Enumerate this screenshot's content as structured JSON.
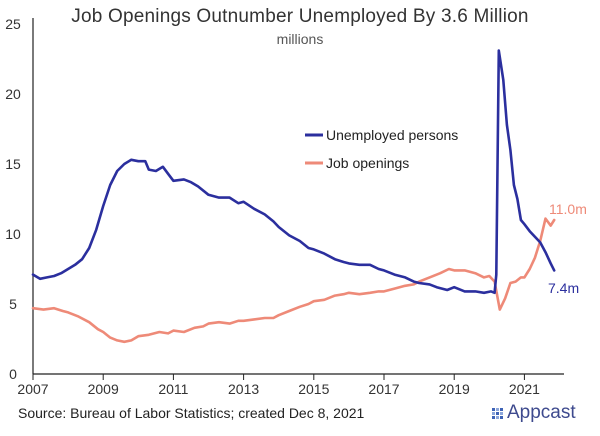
{
  "header": {
    "title": "Job Openings Outnumber Unemployed By 3.6 Million",
    "subtitle": "millions"
  },
  "footer": {
    "source": "Source: Bureau of Labor Statistics; created Dec 8, 2021",
    "brand": "Appcast",
    "brand_icon": "appcast-logo-icon"
  },
  "chart_data": {
    "type": "line",
    "title": "Job Openings Outnumber Unemployed By 3.6 Million",
    "subtitle": "millions",
    "xlabel": "",
    "ylabel": "",
    "xlim": [
      2007,
      2021.9
    ],
    "ylim": [
      0,
      25
    ],
    "x_ticks": [
      "2007",
      "2009",
      "2011",
      "2013",
      "2015",
      "2017",
      "2019",
      "2021"
    ],
    "y_ticks": [
      "0",
      "5",
      "10",
      "15",
      "20",
      "25"
    ],
    "grid": false,
    "legend_position": "center-right",
    "annotations": [
      {
        "text": "7.4m",
        "series": "Unemployed persons"
      },
      {
        "text": "11.0m",
        "series": "Job openings"
      }
    ],
    "series": [
      {
        "name": "Unemployed persons",
        "color": "#2b2f9e",
        "points": [
          [
            2007.0,
            7.1
          ],
          [
            2007.2,
            6.8
          ],
          [
            2007.4,
            6.9
          ],
          [
            2007.6,
            7.0
          ],
          [
            2007.8,
            7.2
          ],
          [
            2008.0,
            7.5
          ],
          [
            2008.2,
            7.8
          ],
          [
            2008.4,
            8.2
          ],
          [
            2008.6,
            9.0
          ],
          [
            2008.8,
            10.3
          ],
          [
            2009.0,
            12.0
          ],
          [
            2009.2,
            13.5
          ],
          [
            2009.4,
            14.5
          ],
          [
            2009.6,
            15.0
          ],
          [
            2009.8,
            15.3
          ],
          [
            2010.0,
            15.2
          ],
          [
            2010.2,
            15.2
          ],
          [
            2010.3,
            14.6
          ],
          [
            2010.5,
            14.5
          ],
          [
            2010.7,
            14.8
          ],
          [
            2010.85,
            14.3
          ],
          [
            2011.0,
            13.8
          ],
          [
            2011.3,
            13.9
          ],
          [
            2011.5,
            13.7
          ],
          [
            2011.7,
            13.4
          ],
          [
            2012.0,
            12.8
          ],
          [
            2012.3,
            12.6
          ],
          [
            2012.6,
            12.6
          ],
          [
            2012.85,
            12.2
          ],
          [
            2013.0,
            12.3
          ],
          [
            2013.3,
            11.8
          ],
          [
            2013.6,
            11.4
          ],
          [
            2013.85,
            10.9
          ],
          [
            2014.0,
            10.5
          ],
          [
            2014.3,
            9.9
          ],
          [
            2014.6,
            9.5
          ],
          [
            2014.85,
            9.0
          ],
          [
            2015.0,
            8.9
          ],
          [
            2015.3,
            8.6
          ],
          [
            2015.6,
            8.2
          ],
          [
            2015.85,
            8.0
          ],
          [
            2016.0,
            7.9
          ],
          [
            2016.3,
            7.8
          ],
          [
            2016.6,
            7.8
          ],
          [
            2016.85,
            7.5
          ],
          [
            2017.0,
            7.4
          ],
          [
            2017.3,
            7.1
          ],
          [
            2017.6,
            6.9
          ],
          [
            2017.85,
            6.6
          ],
          [
            2018.0,
            6.5
          ],
          [
            2018.3,
            6.4
          ],
          [
            2018.5,
            6.2
          ],
          [
            2018.8,
            6.0
          ],
          [
            2019.0,
            6.2
          ],
          [
            2019.3,
            5.9
          ],
          [
            2019.6,
            5.9
          ],
          [
            2019.85,
            5.8
          ],
          [
            2020.05,
            5.9
          ],
          [
            2020.15,
            5.8
          ],
          [
            2020.2,
            7.1
          ],
          [
            2020.27,
            23.1
          ],
          [
            2020.4,
            21.0
          ],
          [
            2020.5,
            17.8
          ],
          [
            2020.6,
            16.0
          ],
          [
            2020.7,
            13.5
          ],
          [
            2020.8,
            12.5
          ],
          [
            2020.9,
            11.0
          ],
          [
            2021.0,
            10.7
          ],
          [
            2021.15,
            10.2
          ],
          [
            2021.3,
            9.8
          ],
          [
            2021.45,
            9.4
          ],
          [
            2021.6,
            8.7
          ],
          [
            2021.75,
            7.9
          ],
          [
            2021.85,
            7.4
          ]
        ]
      },
      {
        "name": "Job openings",
        "color": "#ee8a78",
        "points": [
          [
            2007.0,
            4.7
          ],
          [
            2007.3,
            4.6
          ],
          [
            2007.6,
            4.7
          ],
          [
            2007.85,
            4.5
          ],
          [
            2008.0,
            4.4
          ],
          [
            2008.3,
            4.1
          ],
          [
            2008.6,
            3.7
          ],
          [
            2008.85,
            3.2
          ],
          [
            2009.0,
            3.0
          ],
          [
            2009.2,
            2.6
          ],
          [
            2009.4,
            2.4
          ],
          [
            2009.6,
            2.3
          ],
          [
            2009.8,
            2.4
          ],
          [
            2010.0,
            2.7
          ],
          [
            2010.3,
            2.8
          ],
          [
            2010.6,
            3.0
          ],
          [
            2010.85,
            2.9
          ],
          [
            2011.0,
            3.1
          ],
          [
            2011.3,
            3.0
          ],
          [
            2011.6,
            3.3
          ],
          [
            2011.85,
            3.4
          ],
          [
            2012.0,
            3.6
          ],
          [
            2012.3,
            3.7
          ],
          [
            2012.6,
            3.6
          ],
          [
            2012.85,
            3.8
          ],
          [
            2013.0,
            3.8
          ],
          [
            2013.3,
            3.9
          ],
          [
            2013.6,
            4.0
          ],
          [
            2013.85,
            4.0
          ],
          [
            2014.0,
            4.2
          ],
          [
            2014.3,
            4.5
          ],
          [
            2014.6,
            4.8
          ],
          [
            2014.85,
            5.0
          ],
          [
            2015.0,
            5.2
          ],
          [
            2015.3,
            5.3
          ],
          [
            2015.6,
            5.6
          ],
          [
            2015.85,
            5.7
          ],
          [
            2016.0,
            5.8
          ],
          [
            2016.3,
            5.7
          ],
          [
            2016.6,
            5.8
          ],
          [
            2016.85,
            5.9
          ],
          [
            2017.0,
            5.9
          ],
          [
            2017.3,
            6.1
          ],
          [
            2017.6,
            6.3
          ],
          [
            2017.85,
            6.4
          ],
          [
            2018.0,
            6.6
          ],
          [
            2018.3,
            6.9
          ],
          [
            2018.6,
            7.2
          ],
          [
            2018.85,
            7.5
          ],
          [
            2019.0,
            7.4
          ],
          [
            2019.3,
            7.4
          ],
          [
            2019.6,
            7.2
          ],
          [
            2019.85,
            6.9
          ],
          [
            2020.0,
            7.0
          ],
          [
            2020.15,
            6.6
          ],
          [
            2020.3,
            4.6
          ],
          [
            2020.45,
            5.4
          ],
          [
            2020.6,
            6.5
          ],
          [
            2020.75,
            6.6
          ],
          [
            2020.9,
            6.9
          ],
          [
            2021.0,
            6.9
          ],
          [
            2021.15,
            7.5
          ],
          [
            2021.3,
            8.3
          ],
          [
            2021.45,
            9.5
          ],
          [
            2021.6,
            11.1
          ],
          [
            2021.75,
            10.6
          ],
          [
            2021.85,
            11.0
          ]
        ]
      }
    ]
  }
}
